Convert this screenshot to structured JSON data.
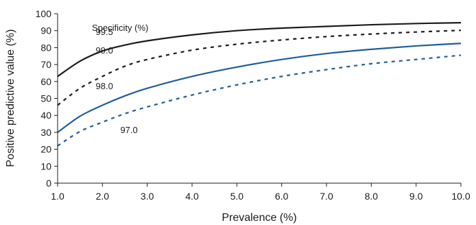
{
  "chart_data": {
    "type": "line",
    "xlabel": "Prevalence (%)",
    "ylabel": "Positive predictive value (%)",
    "xlim": [
      1.0,
      10.0
    ],
    "ylim": [
      0,
      100
    ],
    "xticks": [
      "1.0",
      "2.0",
      "3.0",
      "4.0",
      "5.0",
      "6.0",
      "7.0",
      "8.0",
      "9.0",
      "10.0"
    ],
    "yticks": [
      "0",
      "10",
      "20",
      "30",
      "40",
      "50",
      "60",
      "70",
      "80",
      "90",
      "100"
    ],
    "grid": false,
    "legend_title": "Specificity (%)",
    "series": [
      {
        "name": "99.5",
        "color": "#1a1a1a",
        "dash": "solid",
        "x": [
          1.0,
          1.5,
          2.0,
          2.5,
          3.0,
          4.0,
          5.0,
          6.0,
          7.0,
          8.0,
          9.0,
          10.0
        ],
        "y": [
          63,
          72,
          78,
          81.5,
          84,
          87.5,
          90,
          91.5,
          92.5,
          93.5,
          94.2,
          94.7
        ]
      },
      {
        "name": "99.0",
        "color": "#1a1a1a",
        "dash": "dashed",
        "x": [
          1.0,
          1.5,
          2.0,
          2.5,
          3.0,
          4.0,
          5.0,
          6.0,
          7.0,
          8.0,
          9.0,
          10.0
        ],
        "y": [
          46,
          56,
          63,
          69,
          73,
          78.5,
          82,
          84.5,
          86.5,
          88,
          89.2,
          90.2
        ]
      },
      {
        "name": "98.0",
        "color": "#1f5c99",
        "dash": "solid",
        "x": [
          1.0,
          1.5,
          2.0,
          2.5,
          3.0,
          4.0,
          5.0,
          6.0,
          7.0,
          8.0,
          9.0,
          10.0
        ],
        "y": [
          30,
          39.5,
          46,
          51.5,
          56,
          63,
          68.5,
          73,
          76.5,
          79,
          81,
          82.5
        ]
      },
      {
        "name": "97.0",
        "color": "#1f5c99",
        "dash": "dashed",
        "x": [
          1.0,
          1.5,
          2.0,
          2.5,
          3.0,
          4.0,
          5.0,
          6.0,
          7.0,
          8.0,
          9.0,
          10.0
        ],
        "y": [
          22,
          30.5,
          36,
          41,
          45,
          52,
          58,
          63,
          67,
          70.5,
          73,
          75.5
        ]
      }
    ]
  }
}
